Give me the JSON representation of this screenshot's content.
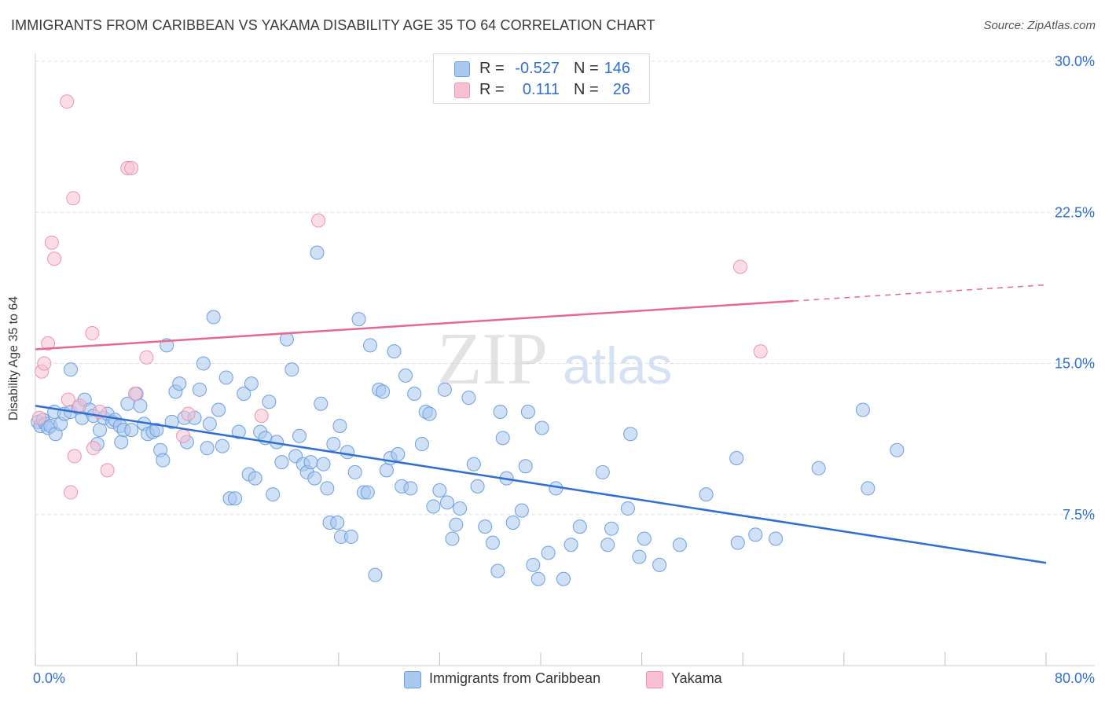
{
  "title": "IMMIGRANTS FROM CARIBBEAN VS YAKAMA DISABILITY AGE 35 TO 64 CORRELATION CHART",
  "source": "Source: ZipAtlas.com",
  "watermark": {
    "zip": "ZIP",
    "atlas": "atlas"
  },
  "colors": {
    "blue_fill": "#a9c8ee",
    "blue_stroke": "#6c9fe0",
    "blue_line": "#2f6fd4",
    "pink_fill": "#f7c1d2",
    "pink_stroke": "#ee93b0",
    "pink_line": "#e8698f",
    "axis_text": "#2e6fd1",
    "grid": "#dcdcdc"
  },
  "stats": {
    "row1": {
      "r_label": "R =",
      "r_value": "-0.527",
      "n_label": "N =",
      "n_value": "146"
    },
    "row2": {
      "r_label": "R =",
      "r_value": "0.111",
      "n_label": "N =",
      "n_value": "26"
    }
  },
  "legend": {
    "series1": "Immigrants from Caribbean",
    "series2": "Yakama"
  },
  "chart_data": {
    "type": "scatter",
    "title": "IMMIGRANTS FROM CARIBBEAN VS YAKAMA DISABILITY AGE 35 TO 64 CORRELATION CHART",
    "xlabel": "",
    "ylabel": "Disability Age 35 to 64",
    "xlim": [
      0,
      80
    ],
    "ylim": [
      0,
      30
    ],
    "x_tick_labels": [
      "0.0%",
      "80.0%"
    ],
    "y_ticks": [
      7.5,
      15.0,
      22.5,
      30.0
    ],
    "y_tick_labels": [
      "7.5%",
      "15.0%",
      "22.5%",
      "30.0%"
    ],
    "grid": true,
    "legend_position": "bottom-center",
    "series": [
      {
        "name": "Immigrants from Caribbean",
        "trend": {
          "x": [
            0,
            80
          ],
          "y": [
            12.9,
            5.1
          ],
          "dashed_from": null
        },
        "points": [
          [
            0.2,
            12.1
          ],
          [
            0.4,
            11.9
          ],
          [
            0.6,
            12.2
          ],
          [
            0.8,
            12.0
          ],
          [
            1.0,
            11.8
          ],
          [
            1.2,
            11.9
          ],
          [
            1.5,
            12.6
          ],
          [
            1.6,
            11.5
          ],
          [
            2.0,
            12.0
          ],
          [
            2.3,
            12.5
          ],
          [
            2.8,
            14.7
          ],
          [
            2.8,
            12.6
          ],
          [
            3.4,
            12.8
          ],
          [
            3.7,
            12.3
          ],
          [
            3.9,
            13.2
          ],
          [
            4.3,
            12.7
          ],
          [
            4.6,
            12.4
          ],
          [
            4.9,
            11.0
          ],
          [
            5.1,
            11.7
          ],
          [
            5.4,
            12.3
          ],
          [
            5.7,
            12.5
          ],
          [
            6.1,
            12.1
          ],
          [
            6.3,
            12.2
          ],
          [
            6.7,
            11.9
          ],
          [
            6.8,
            11.1
          ],
          [
            7.0,
            11.7
          ],
          [
            7.3,
            13.0
          ],
          [
            7.6,
            11.7
          ],
          [
            8.0,
            13.5
          ],
          [
            8.3,
            12.9
          ],
          [
            8.6,
            12.0
          ],
          [
            8.9,
            11.5
          ],
          [
            9.3,
            11.6
          ],
          [
            9.6,
            11.7
          ],
          [
            9.9,
            10.7
          ],
          [
            10.1,
            10.2
          ],
          [
            10.4,
            15.9
          ],
          [
            10.8,
            12.1
          ],
          [
            11.1,
            13.6
          ],
          [
            11.4,
            14.0
          ],
          [
            11.8,
            12.3
          ],
          [
            12.0,
            11.1
          ],
          [
            12.6,
            12.3
          ],
          [
            13.0,
            13.7
          ],
          [
            13.3,
            15.0
          ],
          [
            13.6,
            10.8
          ],
          [
            13.8,
            12.0
          ],
          [
            14.1,
            17.3
          ],
          [
            14.5,
            12.7
          ],
          [
            14.8,
            10.9
          ],
          [
            15.1,
            14.3
          ],
          [
            15.4,
            8.3
          ],
          [
            15.8,
            8.3
          ],
          [
            16.1,
            11.6
          ],
          [
            16.5,
            13.5
          ],
          [
            16.9,
            9.5
          ],
          [
            17.1,
            14.0
          ],
          [
            17.4,
            9.3
          ],
          [
            17.8,
            11.6
          ],
          [
            18.2,
            11.3
          ],
          [
            18.5,
            13.1
          ],
          [
            18.8,
            8.5
          ],
          [
            19.1,
            11.1
          ],
          [
            19.5,
            10.1
          ],
          [
            19.9,
            16.2
          ],
          [
            20.3,
            14.7
          ],
          [
            20.6,
            10.4
          ],
          [
            20.9,
            11.4
          ],
          [
            21.2,
            10.0
          ],
          [
            21.5,
            9.6
          ],
          [
            21.8,
            10.1
          ],
          [
            22.1,
            9.3
          ],
          [
            22.3,
            20.5
          ],
          [
            22.6,
            13.0
          ],
          [
            22.8,
            10.0
          ],
          [
            23.1,
            8.8
          ],
          [
            23.3,
            7.1
          ],
          [
            23.6,
            11.0
          ],
          [
            23.9,
            7.1
          ],
          [
            24.1,
            11.9
          ],
          [
            24.2,
            6.4
          ],
          [
            24.7,
            10.6
          ],
          [
            25.0,
            6.4
          ],
          [
            25.3,
            9.6
          ],
          [
            25.6,
            17.2
          ],
          [
            26.0,
            8.6
          ],
          [
            26.3,
            8.6
          ],
          [
            26.5,
            15.9
          ],
          [
            26.9,
            4.5
          ],
          [
            27.2,
            13.7
          ],
          [
            27.5,
            13.6
          ],
          [
            27.8,
            9.7
          ],
          [
            28.1,
            10.3
          ],
          [
            28.4,
            15.6
          ],
          [
            28.7,
            10.5
          ],
          [
            29.0,
            8.9
          ],
          [
            29.3,
            14.4
          ],
          [
            29.7,
            8.8
          ],
          [
            30.0,
            13.5
          ],
          [
            30.6,
            11.0
          ],
          [
            30.9,
            12.6
          ],
          [
            31.2,
            12.5
          ],
          [
            31.5,
            7.9
          ],
          [
            32.0,
            8.7
          ],
          [
            32.4,
            13.7
          ],
          [
            32.6,
            8.1
          ],
          [
            33.0,
            6.3
          ],
          [
            33.3,
            7.0
          ],
          [
            33.6,
            7.8
          ],
          [
            34.3,
            13.3
          ],
          [
            34.7,
            10.0
          ],
          [
            35.0,
            8.9
          ],
          [
            35.6,
            6.9
          ],
          [
            36.2,
            6.1
          ],
          [
            36.6,
            4.7
          ],
          [
            36.8,
            12.6
          ],
          [
            37.0,
            11.3
          ],
          [
            37.3,
            9.3
          ],
          [
            37.8,
            7.1
          ],
          [
            38.5,
            7.7
          ],
          [
            38.8,
            9.9
          ],
          [
            39.0,
            12.6
          ],
          [
            39.4,
            5.0
          ],
          [
            39.8,
            4.3
          ],
          [
            40.1,
            11.8
          ],
          [
            40.6,
            5.6
          ],
          [
            41.2,
            8.8
          ],
          [
            41.8,
            4.3
          ],
          [
            42.4,
            6.0
          ],
          [
            43.1,
            6.9
          ],
          [
            44.9,
            9.6
          ],
          [
            45.3,
            6.0
          ],
          [
            45.6,
            6.8
          ],
          [
            46.9,
            7.8
          ],
          [
            47.1,
            11.5
          ],
          [
            47.8,
            5.4
          ],
          [
            48.2,
            6.3
          ],
          [
            49.4,
            5.0
          ],
          [
            51.0,
            6.0
          ],
          [
            53.1,
            8.5
          ],
          [
            55.5,
            10.3
          ],
          [
            55.6,
            6.1
          ],
          [
            57.0,
            6.5
          ],
          [
            58.6,
            6.3
          ],
          [
            62.0,
            9.8
          ],
          [
            65.5,
            12.7
          ],
          [
            65.9,
            8.8
          ],
          [
            68.2,
            10.7
          ]
        ]
      },
      {
        "name": "Yakama",
        "trend": {
          "x": [
            0,
            80
          ],
          "y": [
            15.7,
            18.9
          ],
          "dashed_from": 60
        },
        "points": [
          [
            0.3,
            12.3
          ],
          [
            0.5,
            14.6
          ],
          [
            0.7,
            15.0
          ],
          [
            1.0,
            16.0
          ],
          [
            1.3,
            21.0
          ],
          [
            1.5,
            20.2
          ],
          [
            2.5,
            28.0
          ],
          [
            2.6,
            13.2
          ],
          [
            3.0,
            23.2
          ],
          [
            3.1,
            10.4
          ],
          [
            2.8,
            8.6
          ],
          [
            3.5,
            12.9
          ],
          [
            4.6,
            10.8
          ],
          [
            4.5,
            16.5
          ],
          [
            5.1,
            12.6
          ],
          [
            5.7,
            9.7
          ],
          [
            7.3,
            24.7
          ],
          [
            7.6,
            24.7
          ],
          [
            7.9,
            13.5
          ],
          [
            8.8,
            15.3
          ],
          [
            11.7,
            11.4
          ],
          [
            12.1,
            12.5
          ],
          [
            17.9,
            12.4
          ],
          [
            22.4,
            22.1
          ],
          [
            55.8,
            19.8
          ],
          [
            57.4,
            15.6
          ]
        ]
      }
    ]
  }
}
